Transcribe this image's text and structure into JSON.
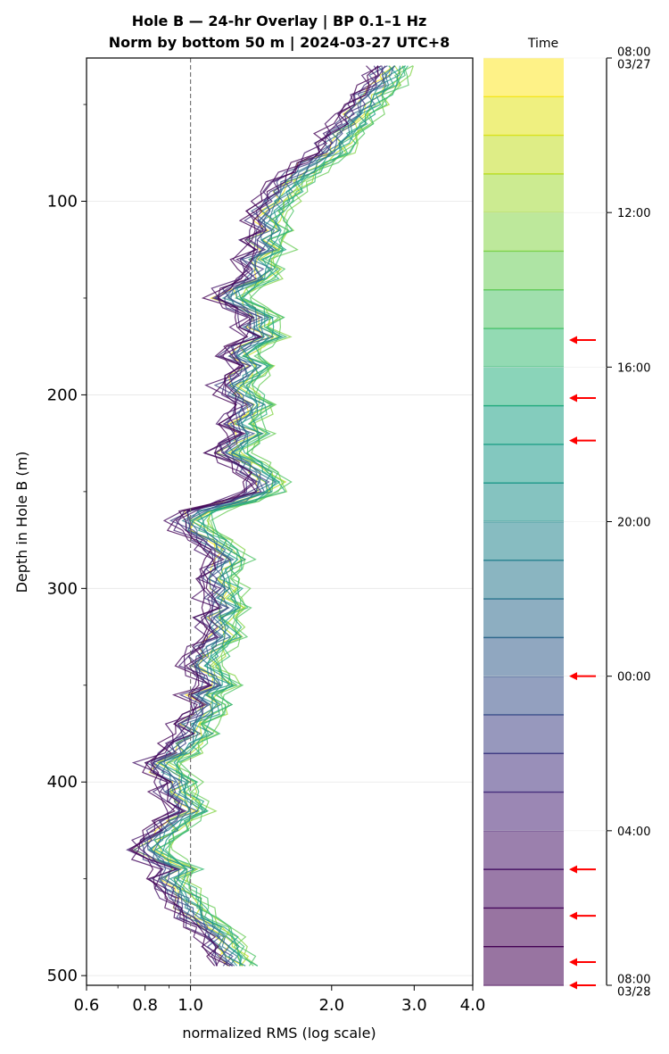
{
  "chart_data": {
    "type": "line",
    "title_line1": "Hole B — 24-hr Overlay  |  BP 0.1–1 Hz",
    "title_line2": "Norm by bottom 50 m  |  2024-03-27 UTC+8",
    "xlabel": "normalized RMS  (log scale)",
    "ylabel": "Depth in Hole B (m)",
    "x_scale": "log",
    "xlim": [
      0.6,
      4.0
    ],
    "ylim": [
      505,
      26
    ],
    "x_ticks": [
      0.6,
      0.8,
      1.0,
      2.0,
      3.0,
      4.0
    ],
    "x_tick_labels": [
      "0.6",
      "0.8",
      "1.0",
      "2.0",
      "3.0",
      "4.0"
    ],
    "y_ticks": [
      100,
      200,
      300,
      400,
      500
    ],
    "y_tick_labels": [
      "100",
      "200",
      "300",
      "400",
      "500"
    ],
    "grid": "horizontal",
    "reference_line_x": 1.0,
    "depth_start": 30,
    "depth_end": 495,
    "depth_step": 5,
    "profile_base": [
      2.55,
      2.5,
      2.45,
      2.3,
      2.25,
      2.15,
      2.1,
      2.0,
      1.95,
      1.9,
      1.75,
      1.65,
      1.55,
      1.5,
      1.45,
      1.4,
      1.38,
      1.42,
      1.35,
      1.4,
      1.3,
      1.35,
      1.32,
      1.2,
      1.15,
      1.25,
      1.35,
      1.3,
      1.38,
      1.25,
      1.2,
      1.3,
      1.25,
      1.18,
      1.22,
      1.3,
      1.25,
      1.2,
      1.28,
      1.2,
      1.15,
      1.25,
      1.32,
      1.38,
      1.35,
      1.2,
      1.0,
      0.95,
      0.98,
      1.05,
      1.1,
      1.15,
      1.1,
      1.08,
      1.12,
      1.1,
      1.15,
      1.08,
      1.1,
      1.12,
      1.05,
      1.02,
      1.0,
      1.05,
      1.1,
      1.0,
      1.05,
      1.02,
      0.95,
      0.98,
      0.92,
      0.9,
      0.82,
      0.85,
      0.9,
      0.88,
      0.92,
      0.95,
      0.88,
      0.85,
      0.8,
      0.78,
      0.82,
      0.9,
      0.85,
      0.88,
      0.92,
      0.95,
      0.98,
      1.05,
      1.1,
      1.12,
      1.15,
      1.18
    ],
    "time_offsets": [
      0.02,
      0.06,
      0.1,
      0.12,
      0.14,
      0.15,
      0.14,
      0.13,
      0.12,
      0.1,
      0.09,
      0.08,
      0.06,
      0.05,
      0.04,
      0.03,
      0.02,
      0.01,
      0.0,
      -0.01,
      -0.02,
      -0.03,
      -0.02,
      -0.03
    ],
    "series": [
      {
        "time": "08:00",
        "color": "#fde725"
      },
      {
        "time": "09:00",
        "color": "#e2e418"
      },
      {
        "time": "10:00",
        "color": "#c2df23"
      },
      {
        "time": "11:00",
        "color": "#a2da37"
      },
      {
        "time": "12:00",
        "color": "#86d549"
      },
      {
        "time": "13:00",
        "color": "#6ccd5a"
      },
      {
        "time": "14:00",
        "color": "#52c569"
      },
      {
        "time": "15:00",
        "color": "#3bbb75"
      },
      {
        "time": "16:00",
        "color": "#2ab07f"
      },
      {
        "time": "17:00",
        "color": "#1fa287"
      },
      {
        "time": "18:00",
        "color": "#1e9b8a"
      },
      {
        "time": "19:00",
        "color": "#21918c"
      },
      {
        "time": "20:00",
        "color": "#25858e"
      },
      {
        "time": "21:00",
        "color": "#2a788e"
      },
      {
        "time": "22:00",
        "color": "#2f6c8e"
      },
      {
        "time": "23:00",
        "color": "#355f8d"
      },
      {
        "time": "00:00",
        "color": "#3b528b"
      },
      {
        "time": "01:00",
        "color": "#414487"
      },
      {
        "time": "02:00",
        "color": "#46337f"
      },
      {
        "time": "03:00",
        "color": "#482576"
      },
      {
        "time": "04:00",
        "color": "#48186a"
      },
      {
        "time": "05:00",
        "color": "#470d60"
      },
      {
        "time": "06:00",
        "color": "#440154"
      },
      {
        "time": "07:00",
        "color": "#440154"
      }
    ],
    "colorbar": {
      "title": "Time",
      "tick_labels": [
        "08:00\n03/27",
        "12:00",
        "16:00",
        "20:00",
        "00:00",
        "04:00",
        "08:00\n03/28"
      ],
      "tick_positions_hours": [
        0,
        4,
        8,
        12,
        16,
        20,
        24
      ],
      "arrow_hours": [
        7.3,
        8.8,
        9.9,
        16.0,
        21.0,
        22.2,
        23.4,
        24.0
      ],
      "arrow_color": "#ff0000"
    }
  }
}
